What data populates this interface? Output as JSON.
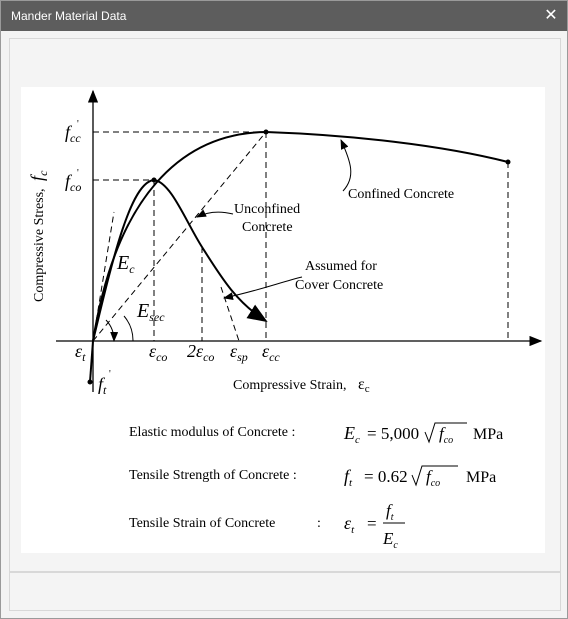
{
  "window": {
    "title": "Mander Material Data",
    "close_icon": "close-icon"
  },
  "figure": {
    "ylabel_main": "Compressive Stress,",
    "ylabel_sym": "f",
    "ylabel_sub": "c",
    "xlabel": "Compressive Strain,",
    "xlabel_sym": "ε",
    "xlabel_sub": "c",
    "y_tick_fcc": "f",
    "y_tick_fcc_sub": "cc",
    "y_tick_fco": "f",
    "y_tick_fco_sub": "co",
    "y_tick_ft": "f",
    "y_tick_ft_sub": "t",
    "prime": "'",
    "x_tick_eps_t": "ε",
    "x_tick_eps_t_sub": "t",
    "x_tick_eps_co": "ε",
    "x_tick_eps_co_sub": "co",
    "x_tick_2eps_co": "2ε",
    "x_tick_2eps_co_sub": "co",
    "x_tick_eps_sp": "ε",
    "x_tick_eps_sp_sub": "sp",
    "x_tick_eps_cc": "ε",
    "x_tick_eps_cc_sub": "cc",
    "label_Ec": "E",
    "label_Ec_sub": "c",
    "label_Esec": "E",
    "label_Esec_sub": "sec",
    "annotation_confined": "Confined Concrete",
    "annotation_unconfined_1": "Unconfined",
    "annotation_unconfined_2": "Concrete",
    "annotation_cover_1": "Assumed for",
    "annotation_cover_2": "Cover Concrete"
  },
  "equations": {
    "elastic_label": "Elastic modulus of Concrete :",
    "elastic_lhs": "E",
    "elastic_lhs_sub": "c",
    "elastic_eq": "= 5,000",
    "elastic_rad": "f",
    "elastic_rad_sub": "co",
    "elastic_unit": "MPa",
    "tensile_label": "Tensile Strength of Concrete :",
    "tensile_lhs": "f",
    "tensile_lhs_sub": "t",
    "tensile_eq": "= 0.62",
    "tensile_rad": "f",
    "tensile_rad_sub": "co",
    "tensile_unit": "MPa",
    "strain_label": "Tensile Strain of Concrete",
    "strain_colon": ":",
    "strain_lhs": "ε",
    "strain_lhs_sub": "t",
    "strain_eq": "=",
    "strain_num": "f",
    "strain_num_sub": "t",
    "strain_den": "E",
    "strain_den_sub": "c"
  }
}
